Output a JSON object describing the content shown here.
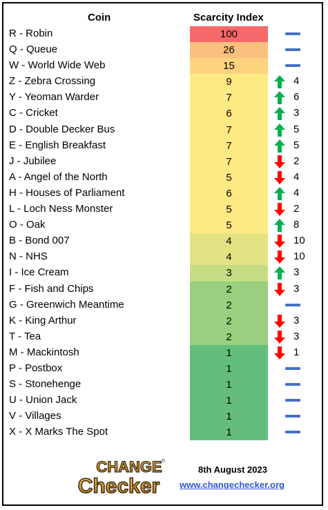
{
  "header": {
    "coin": "Coin",
    "scarcity": "Scarcity Index"
  },
  "colors": {
    "trend_up": "#00b050",
    "trend_down": "#ff0000",
    "no_change": "#4472c4"
  },
  "coins": [
    {
      "name": "R - Robin",
      "score": "100",
      "trend": "none",
      "change": "",
      "color": "#f8696b"
    },
    {
      "name": "Q - Queue",
      "score": "26",
      "trend": "none",
      "change": "",
      "color": "#fbc07d"
    },
    {
      "name": "W - World Wide Web",
      "score": "15",
      "trend": "none",
      "change": "",
      "color": "#fdd37f"
    },
    {
      "name": "Z - Zebra Crossing",
      "score": "9",
      "trend": "up",
      "change": "4",
      "color": "#feea83"
    },
    {
      "name": "Y - Yeoman Warder",
      "score": "7",
      "trend": "up",
      "change": "6",
      "color": "#feea83"
    },
    {
      "name": "C - Cricket",
      "score": "6",
      "trend": "up",
      "change": "3",
      "color": "#feea83"
    },
    {
      "name": "D - Double Decker Bus",
      "score": "7",
      "trend": "up",
      "change": "5",
      "color": "#feea83"
    },
    {
      "name": "E - English Breakfast",
      "score": "7",
      "trend": "up",
      "change": "5",
      "color": "#feea83"
    },
    {
      "name": "J - Jubilee",
      "score": "7",
      "trend": "down",
      "change": "2",
      "color": "#feea83"
    },
    {
      "name": "A - Angel of the North",
      "score": "5",
      "trend": "down",
      "change": "4",
      "color": "#feea83"
    },
    {
      "name": "H - Houses of Parliament",
      "score": "6",
      "trend": "up",
      "change": "4",
      "color": "#feea83"
    },
    {
      "name": "L - Loch Ness Monster",
      "score": "5",
      "trend": "down",
      "change": "2",
      "color": "#feea83"
    },
    {
      "name": "O - Oak",
      "score": "5",
      "trend": "up",
      "change": "8",
      "color": "#feea83"
    },
    {
      "name": "B - Bond 007",
      "score": "4",
      "trend": "down",
      "change": "10",
      "color": "#e3e383"
    },
    {
      "name": "N - NHS",
      "score": "4",
      "trend": "down",
      "change": "10",
      "color": "#e3e383"
    },
    {
      "name": "I - Ice Cream",
      "score": "3",
      "trend": "up",
      "change": "3",
      "color": "#c4dd82"
    },
    {
      "name": "F - Fish and Chips",
      "score": "2",
      "trend": "down",
      "change": "3",
      "color": "#99cf7e"
    },
    {
      "name": "G - Greenwich Meantime",
      "score": "2",
      "trend": "none",
      "change": "",
      "color": "#99cf7e"
    },
    {
      "name": "K - King Arthur",
      "score": "2",
      "trend": "down",
      "change": "3",
      "color": "#99cf7e"
    },
    {
      "name": "T - Tea",
      "score": "2",
      "trend": "down",
      "change": "3",
      "color": "#99cf7e"
    },
    {
      "name": "M - Mackintosh",
      "score": "1",
      "trend": "down",
      "change": "1",
      "color": "#63be7b"
    },
    {
      "name": "P - Postbox",
      "score": "1",
      "trend": "none",
      "change": "",
      "color": "#63be7b"
    },
    {
      "name": "S - Stonehenge",
      "score": "1",
      "trend": "none",
      "change": "",
      "color": "#63be7b"
    },
    {
      "name": "U - Union Jack",
      "score": "1",
      "trend": "none",
      "change": "",
      "color": "#63be7b"
    },
    {
      "name": "V - Villages",
      "score": "1",
      "trend": "none",
      "change": "",
      "color": "#63be7b"
    },
    {
      "name": "X - X Marks The Spot",
      "score": "1",
      "trend": "none",
      "change": "",
      "color": "#63be7b"
    }
  ],
  "footer": {
    "logo_line1": "CHANGE",
    "logo_line2": "Checker",
    "logo_registered": "®",
    "date": "8th August 2023",
    "website": "www.changechecker.org"
  }
}
